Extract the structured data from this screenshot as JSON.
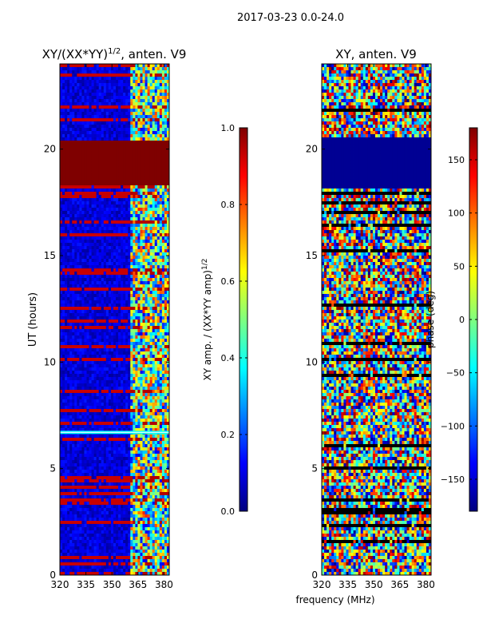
{
  "suptitle": "2017-03-23 0.0-24.0",
  "colors": {
    "cmap": [
      "#00007f",
      "#0000ff",
      "#007fff",
      "#00ffff",
      "#7fff7f",
      "#ffff00",
      "#ff7f00",
      "#ff0000",
      "#7f0000"
    ]
  },
  "chart_data": [
    {
      "type": "heatmap",
      "title_main": "XY/(XX*YY)",
      "title_sup": "1/2",
      "title_rest": ", anten. V9",
      "xlabel": "",
      "ylabel": "UT (hours)",
      "xlim": [
        320,
        383
      ],
      "ylim": [
        0,
        24
      ],
      "xticks": [
        320,
        335,
        350,
        365,
        380
      ],
      "yticks": [
        0,
        5,
        10,
        15,
        20
      ],
      "colorbar": {
        "label_main": "XY amp. / (XX*YY amp)",
        "label_sup": "1/2",
        "range": [
          0.0,
          1.0
        ],
        "ticks": [
          "0.0",
          "0.2",
          "0.4",
          "0.6",
          "0.8",
          "1.0"
        ],
        "tick_values": [
          0.0,
          0.2,
          0.4,
          0.6,
          0.8,
          1.0
        ]
      },
      "noisy_band_MHz": [
        360,
        383
      ],
      "saturated_hours": [
        [
          18.3,
          20.4
        ]
      ],
      "bright_line_hours": [
        6.7
      ]
    },
    {
      "type": "heatmap",
      "title_main": "XY, anten. V9",
      "title_sup": "",
      "title_rest": "",
      "xlabel": "frequency (MHz)",
      "ylabel": "",
      "xlim": [
        320,
        383
      ],
      "ylim": [
        0,
        24
      ],
      "xticks": [
        320,
        335,
        350,
        365,
        380
      ],
      "yticks": [
        0,
        5,
        10,
        15,
        20
      ],
      "colorbar": {
        "label_main": "phase (deg)",
        "label_sup": "",
        "range": [
          -180,
          180
        ],
        "ticks": [
          "150",
          "100",
          "50",
          "0",
          "−50",
          "−100",
          "−150"
        ],
        "tick_values": [
          150,
          100,
          50,
          0,
          -50,
          -100,
          -150
        ]
      },
      "flat_phase_hours": [
        [
          18.2,
          20.6
        ]
      ]
    }
  ]
}
